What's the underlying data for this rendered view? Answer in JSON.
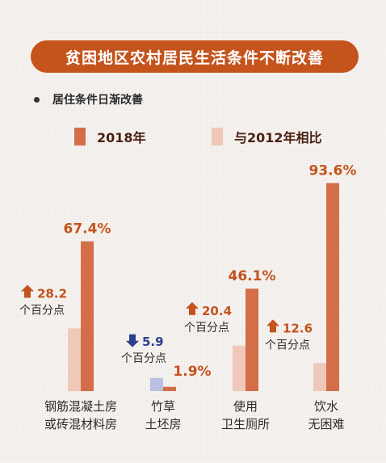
{
  "title": "贫困地区农村居民生活条件不断改善",
  "subtitle": "居住条件日渐改善",
  "legend": [
    {
      "label": "2018年",
      "color": "#d36e48"
    },
    {
      "label": "与2012年相比",
      "color": "#efc8b9"
    }
  ],
  "chart_data": {
    "type": "bar",
    "categories": [
      {
        "line1": "钢筋混凝土房",
        "line2": "或砖混材料房"
      },
      {
        "line1": "竹草",
        "line2": "土坯房"
      },
      {
        "line1": "使用",
        "line2": "卫生厕所"
      },
      {
        "line1": "饮水",
        "line2": "无困难"
      }
    ],
    "series": [
      {
        "name": "2018年",
        "values": [
          67.4,
          1.9,
          46.1,
          93.6
        ],
        "color": "#d36e48"
      },
      {
        "name": "与2012年相比",
        "values": [
          28.2,
          5.9,
          20.4,
          12.6
        ],
        "color": "#efc8b9"
      }
    ],
    "value_labels": [
      "67.4%",
      "1.9%",
      "46.1%",
      "93.6%"
    ],
    "changes": [
      {
        "value": "28.2",
        "unit": "个百分点",
        "direction": "up"
      },
      {
        "value": "5.9",
        "unit": "个百分点",
        "direction": "down"
      },
      {
        "value": "20.4",
        "unit": "个百分点",
        "direction": "up"
      },
      {
        "value": "12.6",
        "unit": "个百分点",
        "direction": "up"
      }
    ],
    "ylim": [
      0,
      100
    ],
    "colors": {
      "up": "#c4531c",
      "down": "#2e3f8f",
      "down_bar": "#b8c1e3",
      "text": "#2b2b2b"
    }
  }
}
